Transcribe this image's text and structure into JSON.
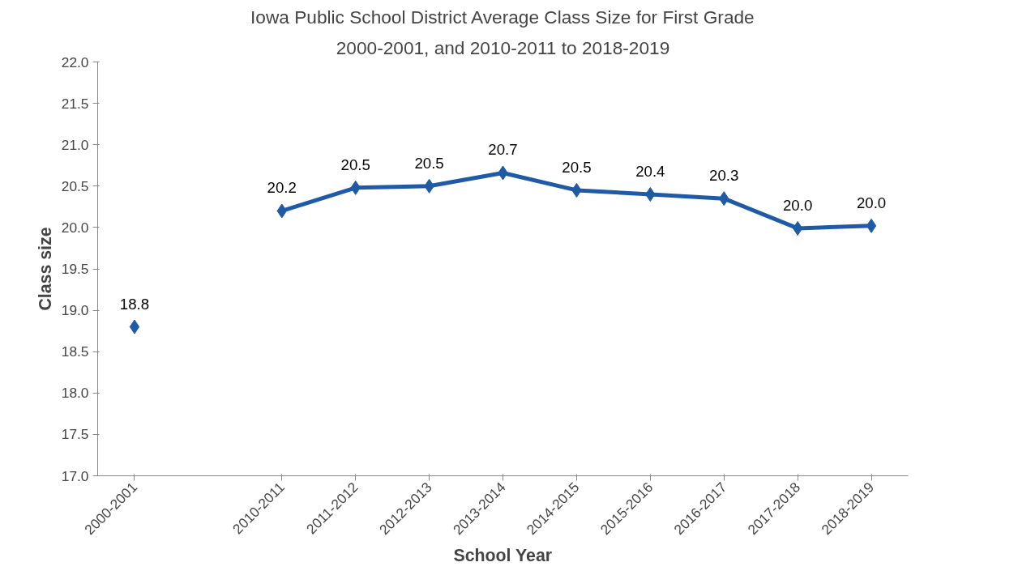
{
  "chart_data": {
    "type": "line",
    "title": "Iowa Public School District Average Class Size for First Grade",
    "subtitle": "2000-2001, and 2010-2011 to 2018-2019",
    "xlabel": "School Year",
    "ylabel": "Class size",
    "categories": [
      "2000-2001",
      null,
      "2010-2011",
      "2011-2012",
      "2012-2013",
      "2013-2014",
      "2014-2015",
      "2015-2016",
      "2016-2017",
      "2017-2018",
      "2018-2019"
    ],
    "series": [
      {
        "color": "#1f5aa6",
        "values": [
          18.8,
          null,
          20.2,
          20.48,
          20.5,
          20.66,
          20.45,
          20.4,
          20.35,
          19.99,
          20.02
        ],
        "value_labels": [
          "18.8",
          null,
          "20.2",
          "20.5",
          "20.5",
          "20.7",
          "20.5",
          "20.4",
          "20.3",
          "20.0",
          "20.0"
        ]
      }
    ],
    "ylim": [
      17.0,
      22.0
    ],
    "yticks": [
      {
        "value": 17.0,
        "label": "17.0"
      },
      {
        "value": 17.5,
        "label": "17.5"
      },
      {
        "value": 18.0,
        "label": "18.0"
      },
      {
        "value": 18.5,
        "label": "18.5"
      },
      {
        "value": 19.0,
        "label": "19.0"
      },
      {
        "value": 19.5,
        "label": "19.5"
      },
      {
        "value": 20.0,
        "label": "20.0"
      },
      {
        "value": 20.5,
        "label": "20.5"
      },
      {
        "value": 21.0,
        "label": "21.0"
      },
      {
        "value": 21.5,
        "label": "21.5"
      },
      {
        "value": 22.0,
        "label": "22.0"
      }
    ],
    "grid": false,
    "marker": "diamond",
    "line_style": "solid"
  }
}
